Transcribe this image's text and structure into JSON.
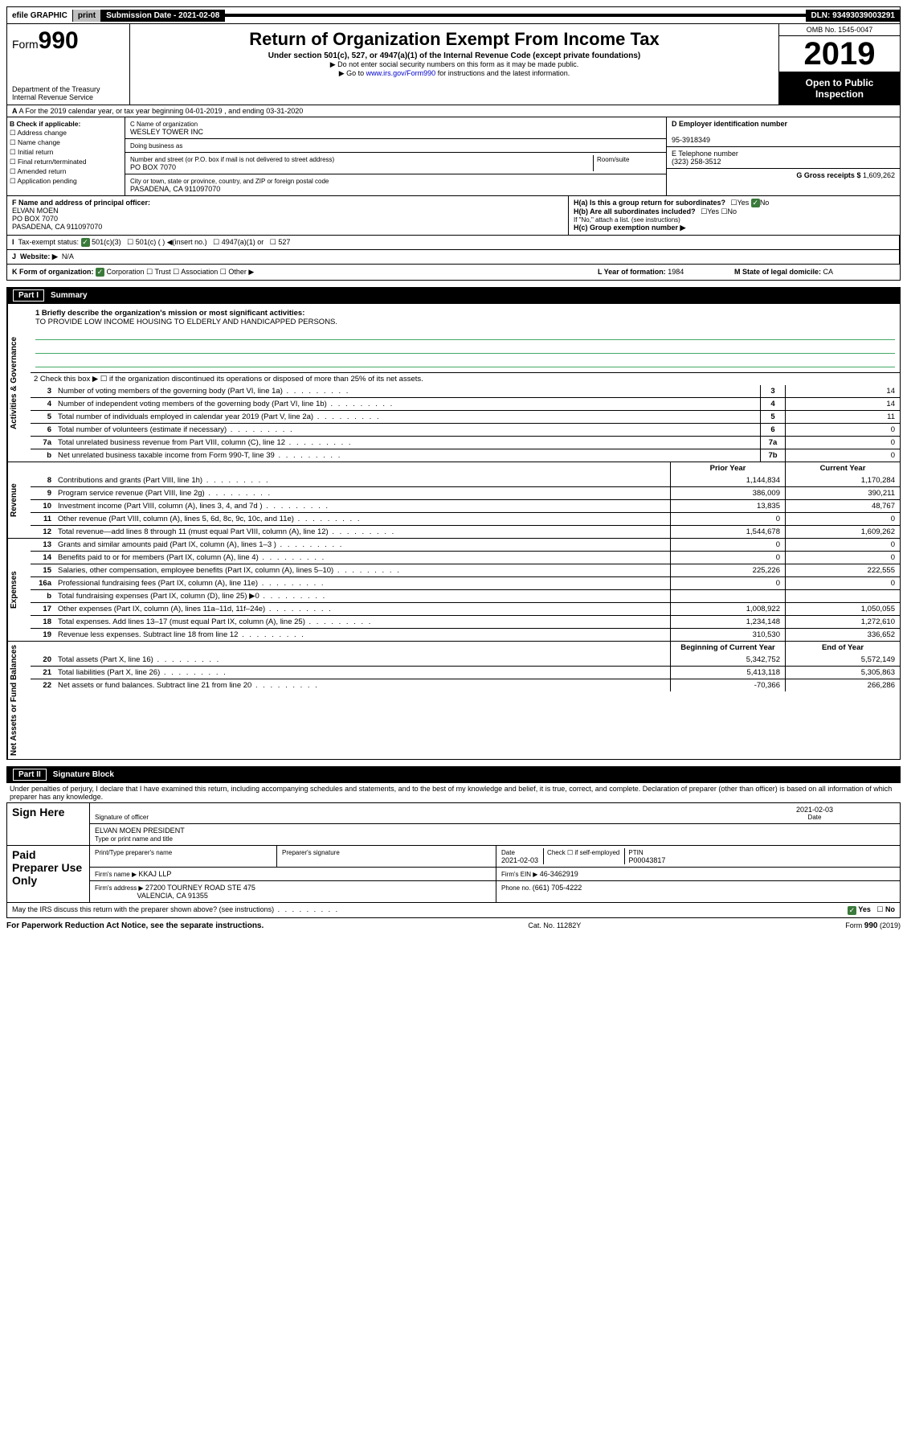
{
  "topbar": {
    "efile": "efile GRAPHIC",
    "print": "print",
    "subdate_label": "Submission Date - ",
    "subdate": "2021-02-08",
    "dln": "DLN: 93493039003291"
  },
  "header": {
    "form_prefix": "Form",
    "form_num": "990",
    "dept": "Department of the Treasury\nInternal Revenue Service",
    "title": "Return of Organization Exempt From Income Tax",
    "subtitle": "Under section 501(c), 527, or 4947(a)(1) of the Internal Revenue Code (except private foundations)",
    "note1": "▶ Do not enter social security numbers on this form as it may be made public.",
    "note2_pre": "▶ Go to ",
    "note2_link": "www.irs.gov/Form990",
    "note2_post": " for instructions and the latest information.",
    "omb": "OMB No. 1545-0047",
    "year": "2019",
    "open": "Open to Public Inspection"
  },
  "rowA": "A For the 2019 calendar year, or tax year beginning 04-01-2019   , and ending 03-31-2020",
  "colB": {
    "label": "B Check if applicable:",
    "opts": [
      "Address change",
      "Name change",
      "Initial return",
      "Final return/terminated",
      "Amended return",
      "Application pending"
    ]
  },
  "colC": {
    "name_label": "C Name of organization",
    "name": "WESLEY TOWER INC",
    "dba_label": "Doing business as",
    "addr_label": "Number and street (or P.O. box if mail is not delivered to street address)",
    "room_label": "Room/suite",
    "addr": "PO BOX 7070",
    "city_label": "City or town, state or province, country, and ZIP or foreign postal code",
    "city": "PASADENA, CA  911097070"
  },
  "colD": {
    "ein_label": "D Employer identification number",
    "ein": "95-3918349",
    "phone_label": "E Telephone number",
    "phone": "(323) 258-3512",
    "gross_label": "G Gross receipts $ ",
    "gross": "1,609,262"
  },
  "rowF": {
    "label": "F  Name and address of principal officer:",
    "name": "ELVAN MOEN",
    "addr1": "PO BOX 7070",
    "addr2": "PASADENA, CA  911097070"
  },
  "rowH": {
    "a": "H(a)  Is this a group return for subordinates?",
    "b": "H(b)  Are all subordinates included?",
    "note": "If \"No,\" attach a list. (see instructions)",
    "c": "H(c)  Group exemption number ▶",
    "yes": "Yes",
    "no": "No"
  },
  "rowI": {
    "label": "Tax-exempt status:",
    "o501c3": "501(c)(3)",
    "o501c": "501(c) (  ) ◀(insert no.)",
    "o4947": "4947(a)(1) or",
    "o527": "527"
  },
  "rowJ": {
    "label": "Website: ▶",
    "val": "N/A"
  },
  "rowK": {
    "label": "K Form of organization:",
    "corp": "Corporation",
    "trust": "Trust",
    "assoc": "Association",
    "other": "Other ▶",
    "L_label": "L Year of formation: ",
    "L_val": "1984",
    "M_label": "M State of legal domicile: ",
    "M_val": "CA"
  },
  "part1": {
    "title": "Part I",
    "name": "Summary",
    "q1": "1  Briefly describe the organization's mission or most significant activities:",
    "mission": "TO PROVIDE LOW INCOME HOUSING TO ELDERLY AND HANDICAPPED PERSONS.",
    "q2": "2  Check this box ▶ ☐  if the organization discontinued its operations or disposed of more than 25% of its net assets.",
    "side_gov": "Activities & Governance",
    "side_rev": "Revenue",
    "side_exp": "Expenses",
    "side_net": "Net Assets or Fund Balances",
    "hdr_prior": "Prior Year",
    "hdr_curr": "Current Year",
    "hdr_beg": "Beginning of Current Year",
    "hdr_end": "End of Year",
    "rows_gov": [
      {
        "n": "3",
        "d": "Number of voting members of the governing body (Part VI, line 1a)",
        "b": "3",
        "v": "14"
      },
      {
        "n": "4",
        "d": "Number of independent voting members of the governing body (Part VI, line 1b)",
        "b": "4",
        "v": "14"
      },
      {
        "n": "5",
        "d": "Total number of individuals employed in calendar year 2019 (Part V, line 2a)",
        "b": "5",
        "v": "11"
      },
      {
        "n": "6",
        "d": "Total number of volunteers (estimate if necessary)",
        "b": "6",
        "v": "0"
      },
      {
        "n": "7a",
        "d": "Total unrelated business revenue from Part VIII, column (C), line 12",
        "b": "7a",
        "v": "0"
      },
      {
        "n": "b",
        "d": "Net unrelated business taxable income from Form 990-T, line 39",
        "b": "7b",
        "v": "0"
      }
    ],
    "rows_rev": [
      {
        "n": "8",
        "d": "Contributions and grants (Part VIII, line 1h)",
        "p": "1,144,834",
        "c": "1,170,284"
      },
      {
        "n": "9",
        "d": "Program service revenue (Part VIII, line 2g)",
        "p": "386,009",
        "c": "390,211"
      },
      {
        "n": "10",
        "d": "Investment income (Part VIII, column (A), lines 3, 4, and 7d )",
        "p": "13,835",
        "c": "48,767"
      },
      {
        "n": "11",
        "d": "Other revenue (Part VIII, column (A), lines 5, 6d, 8c, 9c, 10c, and 11e)",
        "p": "0",
        "c": "0"
      },
      {
        "n": "12",
        "d": "Total revenue—add lines 8 through 11 (must equal Part VIII, column (A), line 12)",
        "p": "1,544,678",
        "c": "1,609,262"
      }
    ],
    "rows_exp": [
      {
        "n": "13",
        "d": "Grants and similar amounts paid (Part IX, column (A), lines 1–3 )",
        "p": "0",
        "c": "0"
      },
      {
        "n": "14",
        "d": "Benefits paid to or for members (Part IX, column (A), line 4)",
        "p": "0",
        "c": "0"
      },
      {
        "n": "15",
        "d": "Salaries, other compensation, employee benefits (Part IX, column (A), lines 5–10)",
        "p": "225,226",
        "c": "222,555"
      },
      {
        "n": "16a",
        "d": "Professional fundraising fees (Part IX, column (A), line 11e)",
        "p": "0",
        "c": "0"
      },
      {
        "n": "b",
        "d": "Total fundraising expenses (Part IX, column (D), line 25) ▶0",
        "p": "",
        "c": ""
      },
      {
        "n": "17",
        "d": "Other expenses (Part IX, column (A), lines 11a–11d, 11f–24e)",
        "p": "1,008,922",
        "c": "1,050,055"
      },
      {
        "n": "18",
        "d": "Total expenses. Add lines 13–17 (must equal Part IX, column (A), line 25)",
        "p": "1,234,148",
        "c": "1,272,610"
      },
      {
        "n": "19",
        "d": "Revenue less expenses. Subtract line 18 from line 12",
        "p": "310,530",
        "c": "336,652"
      }
    ],
    "rows_net": [
      {
        "n": "20",
        "d": "Total assets (Part X, line 16)",
        "p": "5,342,752",
        "c": "5,572,149"
      },
      {
        "n": "21",
        "d": "Total liabilities (Part X, line 26)",
        "p": "5,413,118",
        "c": "5,305,863"
      },
      {
        "n": "22",
        "d": "Net assets or fund balances. Subtract line 21 from line 20",
        "p": "-70,366",
        "c": "266,286"
      }
    ]
  },
  "part2": {
    "title": "Part II",
    "name": "Signature Block",
    "decl": "Under penalties of perjury, I declare that I have examined this return, including accompanying schedules and statements, and to the best of my knowledge and belief, it is true, correct, and complete. Declaration of preparer (other than officer) is based on all information of which preparer has any knowledge.",
    "sign_here": "Sign Here",
    "sig_officer": "Signature of officer",
    "sig_date": "2021-02-03",
    "date_label": "Date",
    "name_title": "ELVAN MOEN PRESIDENT",
    "type_name": "Type or print name and title",
    "paid": "Paid Preparer Use Only",
    "prep_name_label": "Print/Type preparer's name",
    "prep_sig_label": "Preparer's signature",
    "prep_date_label": "Date",
    "prep_date": "2021-02-03",
    "check_self": "Check ☐ if self-employed",
    "ptin_label": "PTIN",
    "ptin": "P00043817",
    "firm_name_label": "Firm's name    ▶ ",
    "firm_name": "KKAJ LLP",
    "firm_ein_label": "Firm's EIN ▶ ",
    "firm_ein": "46-3462919",
    "firm_addr_label": "Firm's address ▶ ",
    "firm_addr": "27200 TOURNEY ROAD STE 475",
    "firm_city": "VALENCIA, CA  91355",
    "phone_label": "Phone no. ",
    "phone": "(661) 705-4222",
    "discuss": "May the IRS discuss this return with the preparer shown above? (see instructions)",
    "yes": "Yes",
    "no": "No"
  },
  "footer": {
    "pra": "For Paperwork Reduction Act Notice, see the separate instructions.",
    "cat": "Cat. No. 11282Y",
    "form": "Form 990 (2019)"
  }
}
